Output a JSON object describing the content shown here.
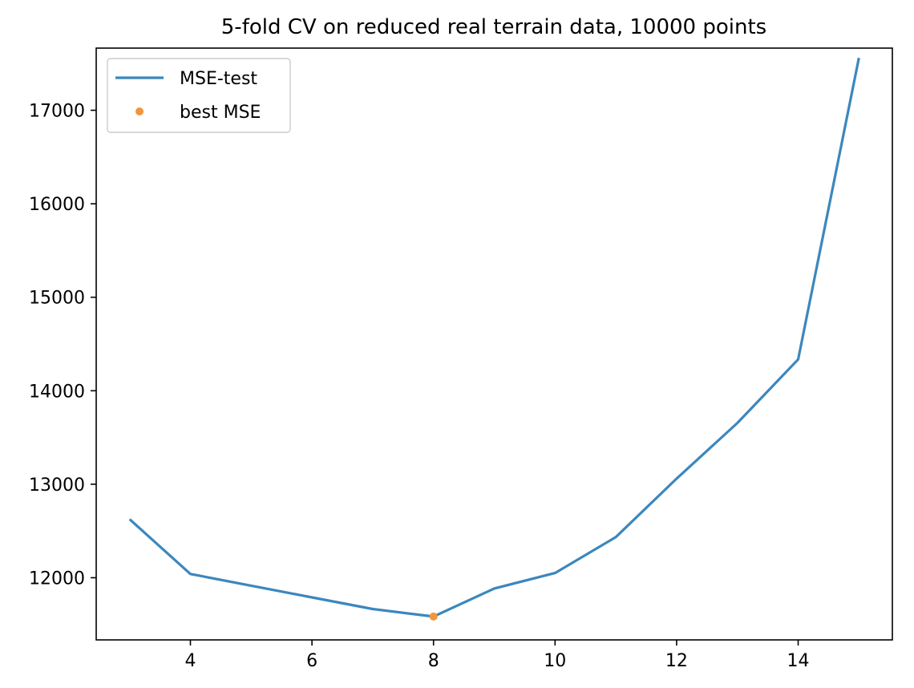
{
  "chart_data": {
    "type": "line",
    "title": "5-fold CV on reduced real terrain data, 10000 points",
    "xlabel": "",
    "ylabel": "",
    "xlim": [
      2.45,
      15.55
    ],
    "ylim": [
      11335,
      17665
    ],
    "xticks": [
      4,
      6,
      8,
      10,
      12,
      14
    ],
    "yticks": [
      12000,
      13000,
      14000,
      15000,
      16000,
      17000
    ],
    "grid": false,
    "legend_position": "upper left",
    "series": [
      {
        "name": "MSE-test",
        "style": "line",
        "color": "#3b87bd",
        "x": [
          3,
          4,
          5,
          6,
          7,
          8,
          9,
          10,
          11,
          12,
          13,
          14,
          15
        ],
        "y": [
          12625,
          12040,
          11915,
          11790,
          11665,
          11585,
          11885,
          12050,
          12435,
          13060,
          13655,
          14335,
          17560
        ]
      },
      {
        "name": "best MSE",
        "style": "marker",
        "color": "#f0963c",
        "x": [
          8
        ],
        "y": [
          11585
        ]
      }
    ]
  }
}
